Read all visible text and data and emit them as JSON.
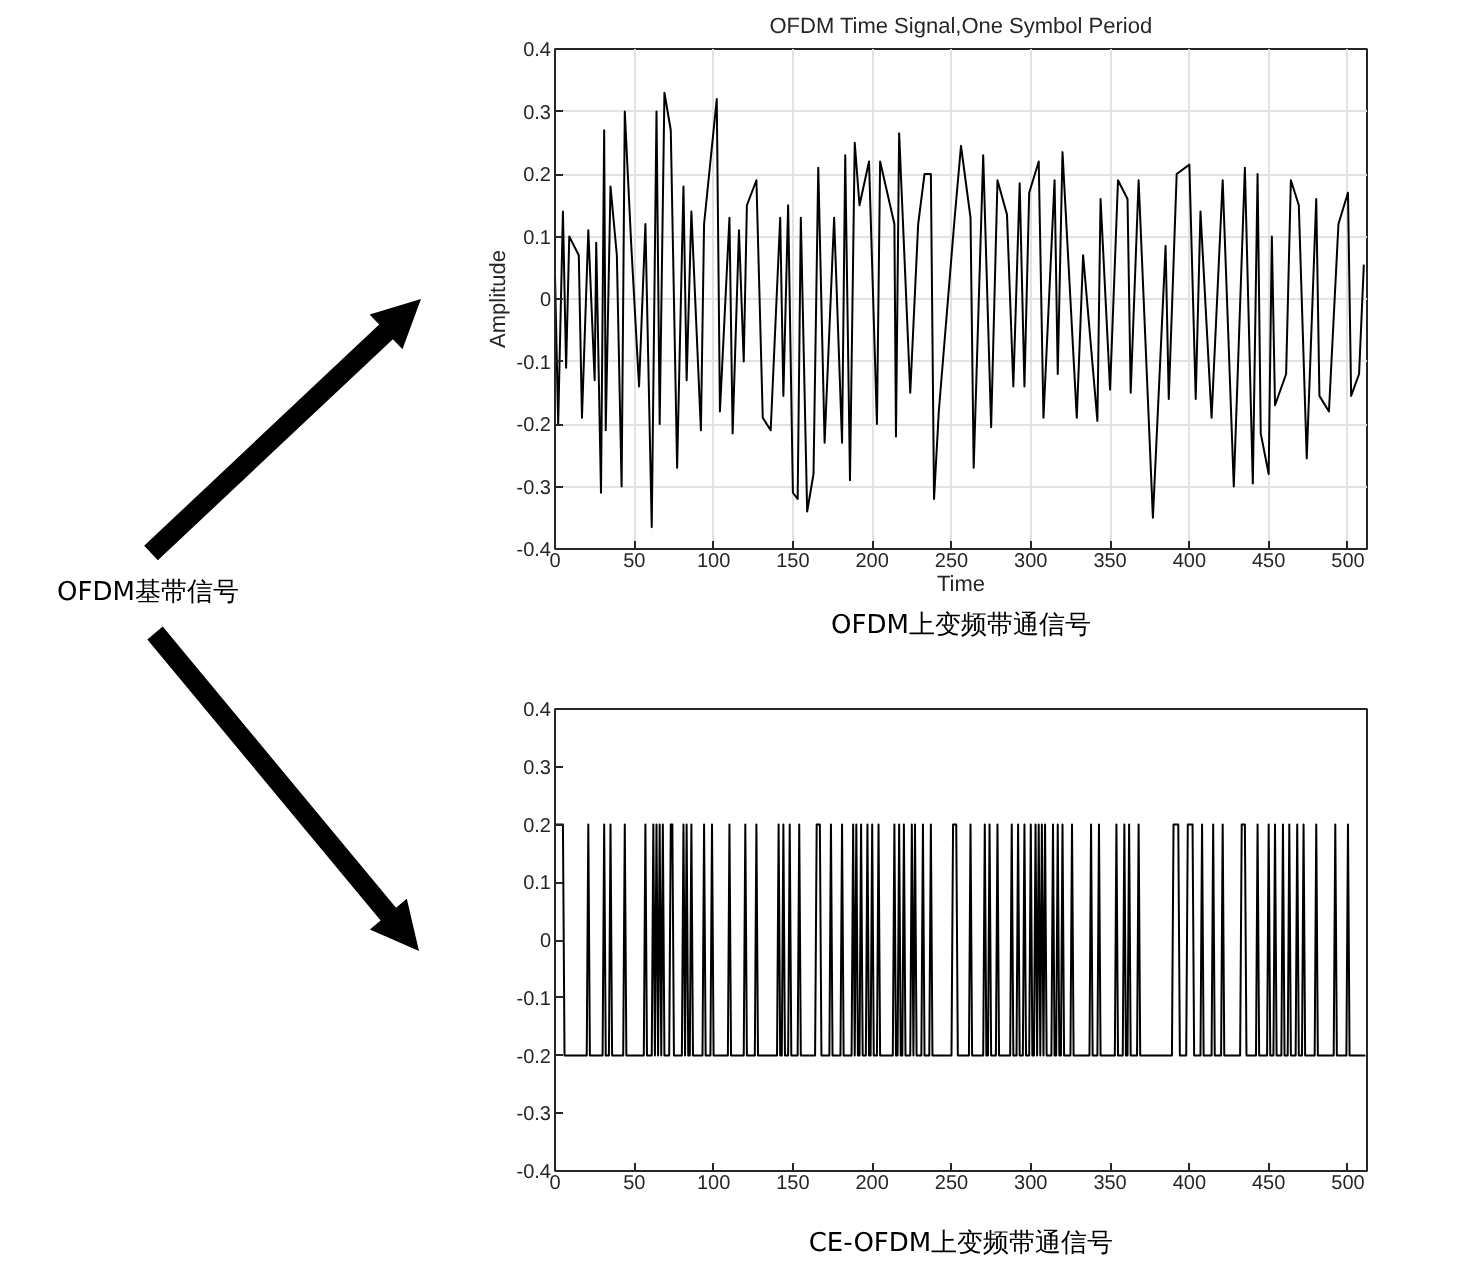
{
  "chart_data": [
    {
      "type": "other",
      "annotations": [
        "OFDM基带信号"
      ]
    },
    {
      "type": "line",
      "title": "OFDM Time Signal,One Symbol Period",
      "xlabel": "Time",
      "ylabel": "Amplitude",
      "annotations": [
        "OFDM上变频带通信号"
      ],
      "color": "#000000",
      "grid": true,
      "xlim": [
        0,
        512
      ],
      "xticks": [
        0,
        50,
        100,
        150,
        200,
        250,
        300,
        350,
        400,
        450,
        500
      ],
      "ylim": [
        -0.4,
        0.4
      ],
      "yticks": [
        -0.4,
        -0.3,
        -0.2,
        -0.1,
        0,
        0.1,
        0.2,
        0.3,
        0.4
      ],
      "x": [
        0,
        2,
        5,
        7,
        9,
        15,
        17,
        21,
        25,
        26,
        29,
        31,
        32,
        35,
        39,
        42,
        44,
        48,
        53,
        57,
        61,
        64,
        66,
        69,
        73,
        77,
        81,
        83,
        86,
        92,
        94,
        102,
        104,
        110,
        112,
        116,
        119,
        121,
        127,
        131,
        136,
        142,
        144,
        147,
        150,
        153,
        155,
        159,
        163,
        166,
        170,
        176,
        181,
        183,
        186,
        189,
        192,
        198,
        203,
        205,
        214,
        215,
        217,
        224,
        229,
        233,
        237,
        239,
        242,
        252,
        256,
        262,
        264,
        270,
        275,
        279,
        285,
        289,
        293,
        296,
        299,
        305,
        308,
        315,
        317,
        320,
        329,
        333,
        342,
        344,
        350,
        355,
        361,
        363,
        368,
        377,
        385,
        387,
        392,
        400,
        404,
        407,
        414,
        421,
        428,
        435,
        440,
        443,
        445,
        450,
        452,
        454,
        461,
        464,
        469,
        474,
        480,
        482,
        488,
        494,
        500,
        502,
        507,
        510
      ],
      "values": [
        0.04,
        -0.2,
        0.14,
        -0.11,
        0.1,
        0.07,
        -0.19,
        0.11,
        -0.13,
        0.09,
        -0.31,
        0.27,
        -0.21,
        0.18,
        0.07,
        -0.3,
        0.3,
        0.09,
        -0.14,
        0.12,
        -0.365,
        0.3,
        -0.2,
        0.33,
        0.27,
        -0.27,
        0.18,
        -0.13,
        0.14,
        -0.21,
        0.12,
        0.32,
        -0.18,
        0.13,
        -0.215,
        0.11,
        -0.1,
        0.15,
        0.19,
        -0.19,
        -0.21,
        0.13,
        -0.155,
        0.15,
        -0.31,
        -0.32,
        0.13,
        -0.34,
        -0.28,
        0.21,
        -0.23,
        0.13,
        -0.23,
        0.23,
        -0.29,
        0.25,
        0.15,
        0.22,
        -0.2,
        0.22,
        0.12,
        -0.22,
        0.265,
        -0.15,
        0.12,
        0.2,
        0.2,
        -0.32,
        -0.18,
        0.13,
        0.245,
        0.13,
        -0.27,
        0.23,
        -0.205,
        0.19,
        0.135,
        -0.14,
        0.185,
        -0.14,
        0.17,
        0.22,
        -0.19,
        0.19,
        -0.12,
        0.235,
        -0.19,
        0.07,
        -0.195,
        0.16,
        -0.145,
        0.19,
        0.16,
        -0.15,
        0.19,
        -0.35,
        0.085,
        -0.16,
        0.2,
        0.215,
        -0.16,
        0.14,
        -0.19,
        0.19,
        -0.3,
        0.21,
        -0.295,
        0.2,
        -0.215,
        -0.28,
        0.1,
        -0.17,
        -0.12,
        0.19,
        0.15,
        -0.255,
        0.16,
        -0.155,
        -0.18,
        0.12,
        0.17,
        -0.155,
        -0.12,
        0.055
      ]
    },
    {
      "type": "line",
      "annotations": [
        "CE-OFDM上变频带通信号"
      ],
      "color": "#000000",
      "grid": false,
      "xlim": [
        0,
        512
      ],
      "xticks": [
        0,
        50,
        100,
        150,
        200,
        250,
        300,
        350,
        400,
        450,
        500
      ],
      "ylim": [
        -0.4,
        0.4
      ],
      "yticks": [
        -0.4,
        -0.3,
        -0.2,
        -0.1,
        0,
        0.1,
        0.2,
        0.3,
        0.4
      ],
      "x": [
        0,
        5,
        6,
        20,
        21,
        22,
        30,
        31,
        32,
        34,
        35,
        36,
        43,
        44,
        45,
        56,
        57,
        58,
        61,
        62,
        63,
        64,
        65,
        66,
        67,
        68,
        69,
        72,
        73,
        74,
        75,
        80,
        81,
        82,
        83,
        84,
        85,
        86,
        87,
        93,
        94,
        95,
        98,
        99,
        100,
        109,
        110,
        111,
        119,
        120,
        121,
        126,
        127,
        128,
        140,
        141,
        142,
        143,
        144,
        145,
        147,
        148,
        149,
        153,
        154,
        155,
        164,
        165,
        167,
        168,
        173,
        174,
        175,
        180,
        181,
        182,
        187,
        188,
        189,
        190,
        191,
        192,
        193,
        194,
        196,
        197,
        198,
        199,
        200,
        201,
        203,
        204,
        205,
        213,
        214,
        215,
        216,
        217,
        218,
        219,
        220,
        221,
        224,
        225,
        226,
        227,
        228,
        231,
        232,
        233,
        236,
        237,
        238,
        250,
        251,
        253,
        254,
        261,
        262,
        263,
        270,
        271,
        272,
        273,
        274,
        275,
        278,
        279,
        280,
        287,
        288,
        289,
        291,
        292,
        293,
        295,
        296,
        297,
        299,
        300,
        301,
        302,
        303,
        304,
        305,
        306,
        307,
        308,
        309,
        310,
        313,
        314,
        315,
        316,
        317,
        318,
        319,
        320,
        321,
        325,
        326,
        327,
        337,
        338,
        339,
        342,
        343,
        344,
        353,
        354,
        355,
        358,
        359,
        360,
        361,
        362,
        363,
        367,
        368,
        369,
        389,
        390,
        393,
        394,
        398,
        399,
        402,
        403,
        407,
        408,
        409,
        414,
        415,
        416,
        420,
        421,
        422,
        432,
        433,
        435,
        436,
        442,
        443,
        444,
        449,
        450,
        451,
        453,
        454,
        455,
        458,
        459,
        460,
        462,
        463,
        464,
        467,
        468,
        469,
        471,
        472,
        473,
        479,
        480,
        481,
        491,
        492,
        493,
        499,
        500,
        501,
        511
      ],
      "values": [
        0.2,
        0.2,
        -0.2,
        -0.2,
        0.2,
        -0.2,
        -0.2,
        0.2,
        -0.2,
        -0.2,
        0.2,
        -0.2,
        -0.2,
        0.2,
        -0.2,
        -0.2,
        0.2,
        -0.2,
        -0.2,
        0.2,
        -0.2,
        0.2,
        -0.2,
        0.2,
        -0.2,
        0.2,
        -0.2,
        -0.2,
        0.2,
        0.2,
        -0.2,
        -0.2,
        0.2,
        -0.2,
        0.2,
        -0.2,
        -0.2,
        0.2,
        -0.2,
        -0.2,
        0.2,
        -0.2,
        -0.2,
        0.2,
        -0.2,
        -0.2,
        0.2,
        -0.2,
        -0.2,
        0.2,
        -0.2,
        -0.2,
        0.2,
        -0.2,
        -0.2,
        0.2,
        -0.2,
        -0.2,
        0.2,
        -0.2,
        -0.2,
        0.2,
        -0.2,
        -0.2,
        0.2,
        -0.2,
        -0.2,
        0.2,
        0.2,
        -0.2,
        -0.2,
        0.2,
        -0.2,
        -0.2,
        0.2,
        -0.2,
        -0.2,
        0.2,
        -0.2,
        0.2,
        -0.2,
        -0.2,
        0.2,
        -0.2,
        -0.2,
        0.2,
        -0.2,
        -0.2,
        0.2,
        -0.2,
        -0.2,
        0.2,
        -0.2,
        -0.2,
        0.2,
        -0.2,
        -0.2,
        0.2,
        -0.2,
        -0.2,
        0.2,
        -0.2,
        -0.2,
        0.2,
        -0.2,
        0.2,
        -0.2,
        -0.2,
        0.2,
        -0.2,
        -0.2,
        0.2,
        -0.2,
        -0.2,
        0.2,
        0.2,
        -0.2,
        -0.2,
        0.2,
        -0.2,
        -0.2,
        0.2,
        -0.2,
        -0.2,
        0.2,
        -0.2,
        -0.2,
        0.2,
        -0.2,
        -0.2,
        0.2,
        -0.2,
        -0.2,
        0.2,
        -0.2,
        -0.2,
        0.2,
        -0.2,
        -0.2,
        0.2,
        -0.2,
        -0.2,
        0.2,
        -0.2,
        0.2,
        -0.2,
        0.2,
        -0.2,
        0.2,
        -0.2,
        -0.2,
        0.2,
        -0.2,
        -0.2,
        0.2,
        -0.2,
        -0.2,
        0.2,
        -0.2,
        -0.2,
        0.2,
        -0.2,
        -0.2,
        0.2,
        -0.2,
        -0.2,
        0.2,
        -0.2,
        -0.2,
        0.2,
        -0.2,
        -0.2,
        0.2,
        -0.2,
        -0.2,
        0.2,
        -0.2,
        -0.2,
        0.2,
        -0.2,
        -0.2,
        0.2,
        0.2,
        -0.2,
        -0.2,
        0.2,
        0.2,
        -0.2,
        -0.2,
        0.2,
        -0.2,
        -0.2,
        0.2,
        -0.2,
        -0.2,
        0.2,
        -0.2,
        -0.2,
        0.2,
        0.2,
        -0.2,
        -0.2,
        0.2,
        -0.2,
        -0.2,
        0.2,
        -0.2,
        -0.2,
        0.2,
        -0.2,
        -0.2,
        0.2,
        -0.2,
        -0.2,
        0.2,
        -0.2,
        -0.2,
        0.2,
        -0.2,
        -0.2,
        0.2,
        -0.2,
        -0.2,
        0.2,
        -0.2,
        -0.2,
        0.2,
        -0.2,
        -0.2,
        0.2,
        -0.2,
        -0.2
      ]
    }
  ]
}
